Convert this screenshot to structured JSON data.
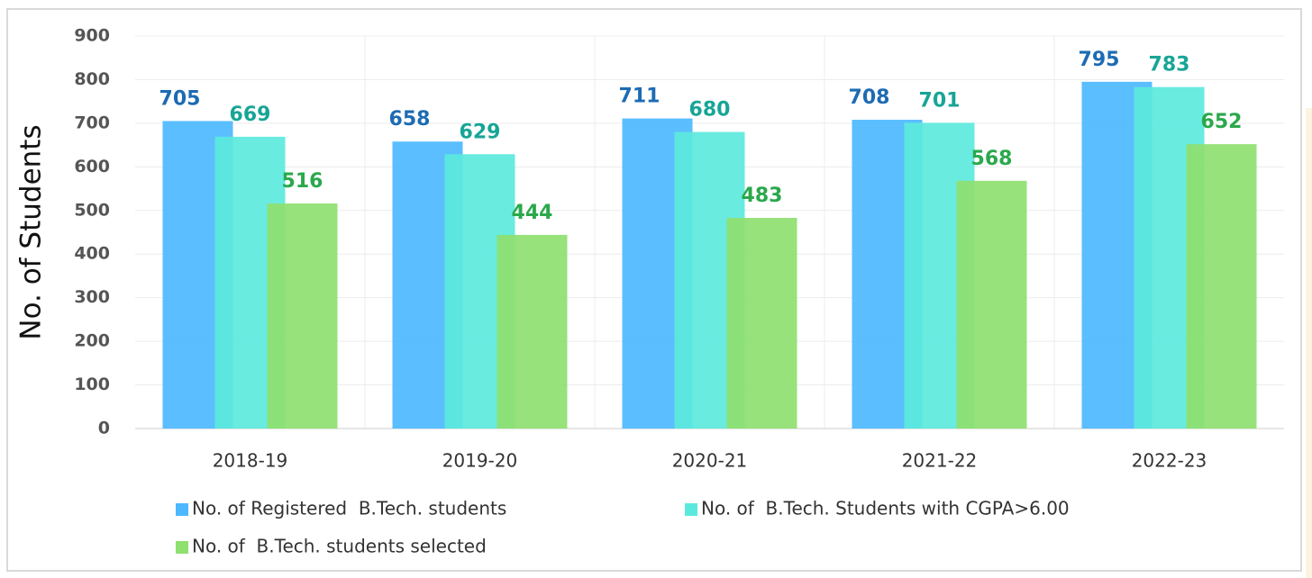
{
  "chart_data": {
    "type": "bar",
    "y_axis_label": "No. of Students",
    "categories": [
      "2018-19",
      "2019-20",
      "2020-21",
      "2021-22",
      "2022-23"
    ],
    "series": [
      {
        "name": "No. of Registered  B.Tech. students",
        "color": "#4db8ff",
        "label_color": "#1d6bb3",
        "values": [
          705,
          658,
          711,
          708,
          795
        ]
      },
      {
        "name": "No. of  B.Tech. Students with CGPA>6.00",
        "color": "#5ce9dd",
        "label_color": "#17a596",
        "values": [
          669,
          629,
          680,
          701,
          783
        ]
      },
      {
        "name": "No. of  B.Tech. students selected",
        "color": "#8ee06f",
        "label_color": "#2aa84c",
        "values": [
          516,
          444,
          483,
          568,
          652
        ]
      }
    ],
    "ylim": [
      0,
      900
    ],
    "yticks": [
      0,
      100,
      200,
      300,
      400,
      500,
      600,
      700,
      800,
      900
    ],
    "grid": true
  }
}
